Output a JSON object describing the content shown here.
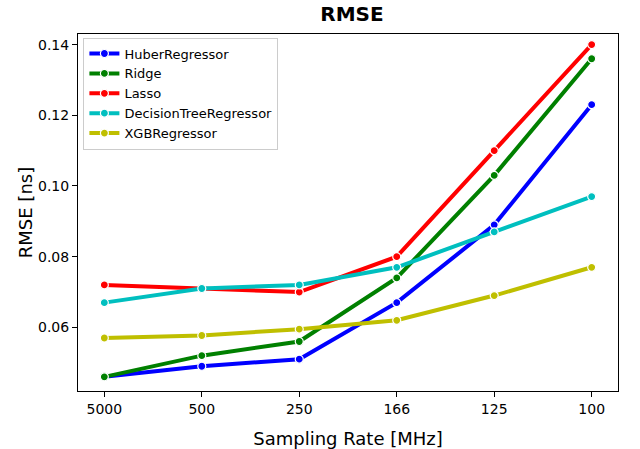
{
  "chart_data": {
    "type": "line",
    "title": "RMSE",
    "x_label": "Sampling Rate [MHz]",
    "y_label": "RMSE [ns]",
    "categories": [
      "5000",
      "500",
      "250",
      "166",
      "125",
      "100"
    ],
    "series": [
      {
        "name": "HuberRegressor",
        "color": "#0000ff",
        "values": [
          0.046,
          0.049,
          0.051,
          0.067,
          0.089,
          0.123
        ]
      },
      {
        "name": "Ridge",
        "color": "#008000",
        "values": [
          0.046,
          0.052,
          0.056,
          0.074,
          0.103,
          0.136
        ]
      },
      {
        "name": "Lasso",
        "color": "#ff0000",
        "values": [
          0.072,
          0.071,
          0.07,
          0.08,
          0.11,
          0.14
        ]
      },
      {
        "name": "DecisionTreeRegressor",
        "color": "#00bfbf",
        "values": [
          0.067,
          0.071,
          0.072,
          0.077,
          0.087,
          0.097
        ]
      },
      {
        "name": "XGBRegressor",
        "color": "#bfbf00",
        "values": [
          0.057,
          0.0577,
          0.0595,
          0.062,
          0.069,
          0.077
        ]
      }
    ],
    "ylim": [
      0.042,
      0.143
    ],
    "yticks": [
      0.06,
      0.08,
      {
        "value": 0.1,
        "label": "0.10"
      },
      0.12,
      0.14
    ],
    "grid": false,
    "legend": "upper left",
    "marker": "circle",
    "line_style": "solid"
  }
}
